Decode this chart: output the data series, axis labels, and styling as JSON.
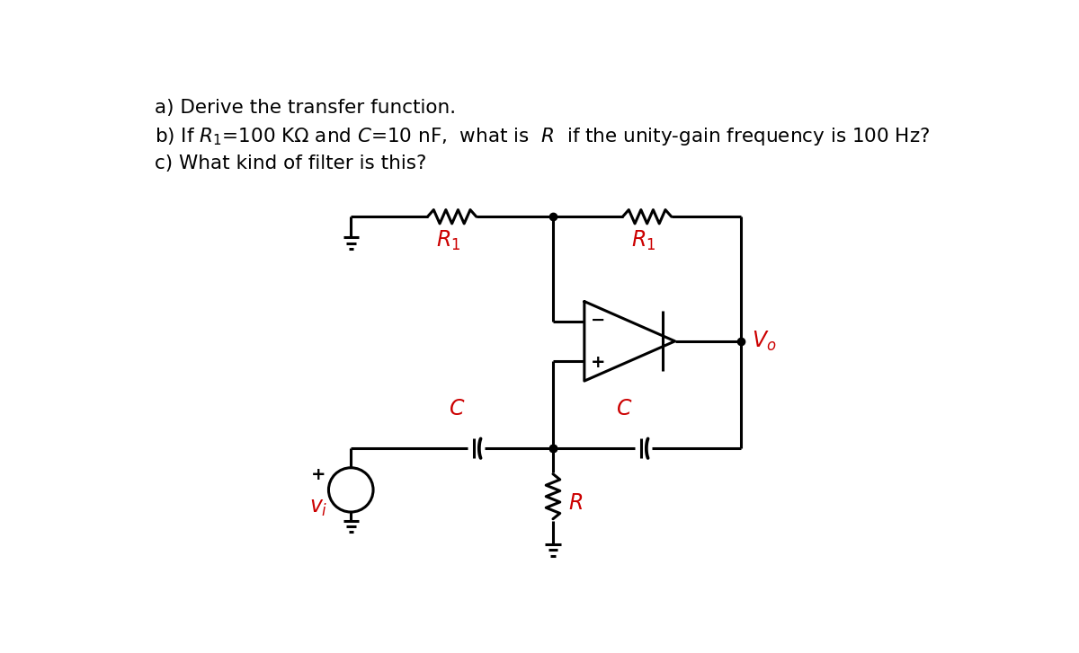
{
  "bg_color": "#ffffff",
  "text_color": "#000000",
  "red_color": "#cc0000",
  "line_color": "#000000",
  "line_width": 2.2,
  "fig_width": 12.0,
  "fig_height": 7.27,
  "dpi": 100,
  "text_a": "a) Derive the transfer function.",
  "text_b": "b) If $R_1$=100 K$\\Omega$ and $C$=10 nF,  what is  $R$  if the unity-gain frequency is 100 Hz?",
  "text_c": "c) What kind of filter is this?",
  "label_R1": "$R_1$",
  "label_C": "$C$",
  "label_R": "$R$",
  "label_Vi": "$v_i$",
  "label_Vo": "$V_o$"
}
